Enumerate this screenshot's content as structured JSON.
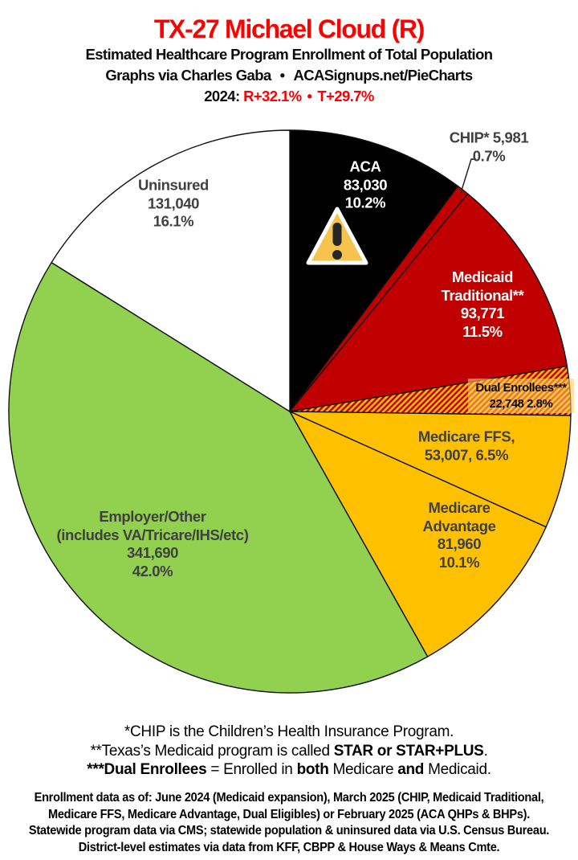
{
  "header": {
    "title": "TX-27 Michael Cloud (R)",
    "subtitle": "Estimated Healthcare Program Enrollment of Total Population",
    "credit": "Graphs via Charles Gaba",
    "bullet": "•",
    "site": "ACASignups.net/PieCharts",
    "year_label": "2024:",
    "r_margin": "R+32.1%",
    "t_margin": "T+29.7%",
    "title_color": "#fe0000",
    "accent_red": "#fe0000"
  },
  "chart_data": {
    "type": "pie",
    "title": "Estimated Healthcare Program Enrollment of Total Population",
    "start_angle_deg": 0,
    "direction": "clockwise",
    "legend_position": "labels-on-slices",
    "hatch_colors": [
      "#c00000",
      "#ffc000"
    ],
    "outline_color": "#111111",
    "slices": [
      {
        "id": "aca",
        "label": "ACA",
        "value": 83030,
        "pct": 10.2,
        "color": "#000000"
      },
      {
        "id": "chip",
        "label": "CHIP*",
        "value": 5981,
        "pct": 0.7,
        "color": "#c00000"
      },
      {
        "id": "medicaid",
        "label": "Medicaid Traditional**",
        "value": 93771,
        "pct": 11.5,
        "color": "#c00000"
      },
      {
        "id": "dual",
        "label": "Dual Enrollees***",
        "value": 22748,
        "pct": 2.8,
        "color": "hatch"
      },
      {
        "id": "ffs",
        "label": "Medicare FFS",
        "value": 53007,
        "pct": 6.5,
        "color": "#ffc000"
      },
      {
        "id": "advantage",
        "label": "Medicare Advantage",
        "value": 81960,
        "pct": 10.1,
        "color": "#ffc000"
      },
      {
        "id": "employer",
        "label": "Employer/Other (includes VA/Tricare/IHS/etc)",
        "value": 341690,
        "pct": 42.0,
        "color": "#92d050"
      },
      {
        "id": "uninsured",
        "label": "Uninsured",
        "value": 131040,
        "pct": 16.1,
        "color": "#ffffff"
      }
    ]
  },
  "labels": {
    "uninsured": {
      "lines": [
        "Uninsured",
        "131,040",
        "16.1%"
      ]
    },
    "aca": {
      "lines": [
        "ACA",
        "83,030",
        "10.2%"
      ]
    },
    "chip": {
      "lines": [
        "CHIP* 5,981",
        "0.7%"
      ]
    },
    "medicaid": {
      "lines": [
        "Medicaid",
        "Traditional**",
        "93,771",
        "11.5%"
      ]
    },
    "dual": {
      "lines": [
        "Dual Enrollees***",
        "22,748 2.8%"
      ]
    },
    "ffs": {
      "lines": [
        "Medicare FFS,",
        "53,007, 6.5%"
      ]
    },
    "advantage": {
      "lines": [
        "Medicare",
        "Advantage",
        "81,960",
        "10.1%"
      ]
    },
    "employer": {
      "lines": [
        "Employer/Other",
        "(includes VA/Tricare/IHS/etc)",
        "341,690",
        "42.0%"
      ]
    }
  },
  "icons": {
    "warning": "warning-triangle"
  },
  "footnotes": {
    "f1": "*CHIP is the Children’s Health Insurance Program.",
    "f2a": "**Texas’s Medicaid program is called ",
    "f2b": "STAR or STAR+PLUS",
    "f2c": ".",
    "f3a": "***Dual Enrollees",
    "f3b": " = Enrolled in ",
    "f3c": "both",
    "f3d": " Medicare ",
    "f3e": "and",
    "f3f": " Medicaid."
  },
  "source": {
    "l1": "Enrollment data as of: June 2024 (Medicaid expansion), March 2025 (CHIP, Medicaid Traditional,",
    "l2": "Medicare FFS, Medicare Advantage, Dual Eligibles) or February 2025 (ACA QHPs & BHPs).",
    "l3": "Statewide program data via CMS; statewide population & uninsured data via U.S. Census Bureau.",
    "l4": "District-level estimates via data from KFF, CBPP & House Ways & Means Cmte."
  }
}
